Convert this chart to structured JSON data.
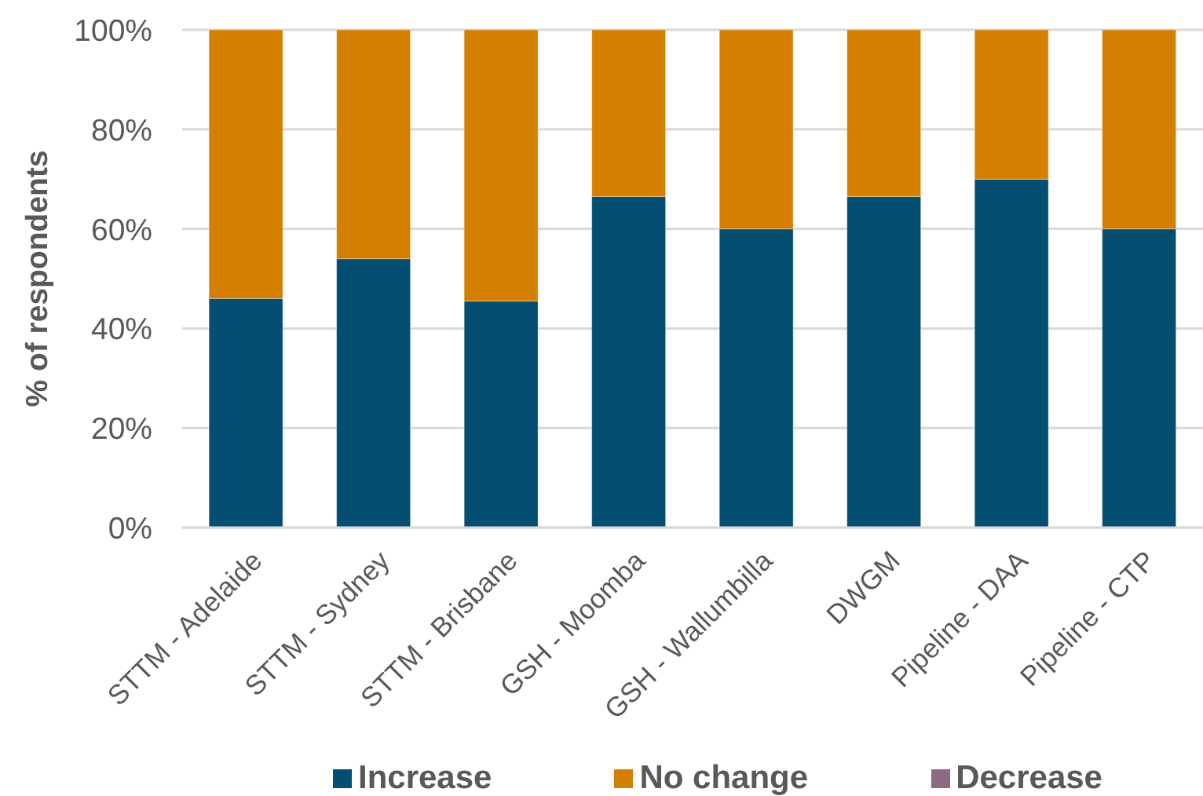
{
  "chart_data": {
    "type": "bar",
    "stacked": true,
    "categories": [
      "STTM - Adelaide",
      "STTM - Sydney",
      "STTM - Brisbane",
      "GSH - Moomba",
      "GSH - Wallumbilla",
      "DWGM",
      "Pipeline - DAA",
      "Pipeline - CTP"
    ],
    "series": [
      {
        "name": "Increase",
        "color": "#044e71",
        "values": [
          46,
          54,
          45.5,
          66.5,
          60,
          66.5,
          70,
          60
        ]
      },
      {
        "name": "No change",
        "color": "#d57f00",
        "values": [
          54,
          46,
          54.5,
          33.5,
          40,
          33.5,
          30,
          40
        ]
      },
      {
        "name": "Decrease",
        "color": "#8c6a86",
        "values": [
          0,
          0,
          0,
          0,
          0,
          0,
          0,
          0
        ]
      }
    ],
    "ylabel": "% of respondents",
    "ylim": [
      0,
      100
    ],
    "yticks": [
      {
        "value": 0,
        "label": "0%"
      },
      {
        "value": 20,
        "label": "20%"
      },
      {
        "value": 40,
        "label": "40%"
      },
      {
        "value": 60,
        "label": "60%"
      },
      {
        "value": 80,
        "label": "80%"
      },
      {
        "value": 100,
        "label": "100%"
      }
    ],
    "grid": "y",
    "legend": "bottom"
  }
}
